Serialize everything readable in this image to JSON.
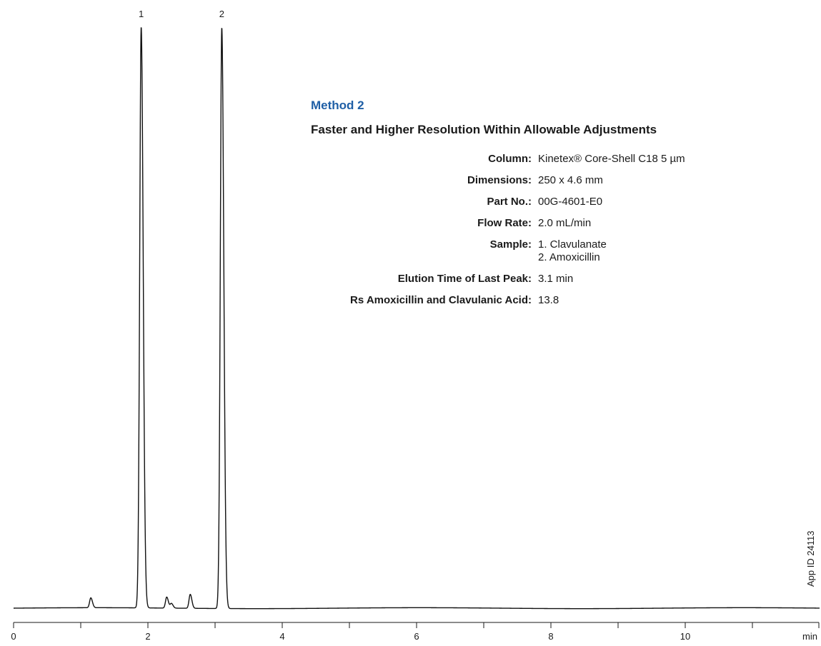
{
  "method": {
    "title": "Method 2",
    "subtitle": "Faster and Higher Resolution Within Allowable Adjustments",
    "title_color": "#1f5fa6"
  },
  "parameters": [
    {
      "label": "Column:",
      "value": "Kinetex® Core-Shell C18 5 µm"
    },
    {
      "label": "Dimensions:",
      "value": "250 x 4.6 mm"
    },
    {
      "label": "Part No.:",
      "value": "00G-4601-E0"
    },
    {
      "label": "Flow Rate:",
      "value": "2.0 mL/min"
    },
    {
      "label": "Sample:",
      "value": "1. Clavulanate",
      "value2": "2. Amoxicillin"
    },
    {
      "label": "Elution Time of Last Peak:",
      "value": "3.1 min"
    },
    {
      "label": "Rs Amoxicillin and Clavulanic Acid:",
      "value": "13.8"
    }
  ],
  "app_id": "App ID 24113",
  "chart_data": {
    "type": "line",
    "title": "",
    "xlabel": "min",
    "ylabel": "",
    "xlim": [
      0,
      12
    ],
    "x_ticks_major": [
      0,
      2,
      4,
      6,
      8,
      10
    ],
    "x_ticks_minor": [
      1,
      3,
      5,
      7,
      9,
      11,
      12
    ],
    "x_tick_labels": [
      "0",
      "2",
      "4",
      "6",
      "8",
      "10"
    ],
    "x_unit_label": "min",
    "grid": false,
    "peaks": [
      {
        "label": "1",
        "name": "Clavulanate",
        "time": 1.9,
        "height": 1.0
      },
      {
        "label": "2",
        "name": "Amoxicillin",
        "time": 3.1,
        "height": 1.0
      }
    ],
    "minor_peaks": [
      {
        "time": 1.15,
        "height": 0.017
      },
      {
        "time": 2.28,
        "height": 0.019
      },
      {
        "time": 2.35,
        "height": 0.008
      },
      {
        "time": 2.63,
        "height": 0.024
      }
    ]
  }
}
